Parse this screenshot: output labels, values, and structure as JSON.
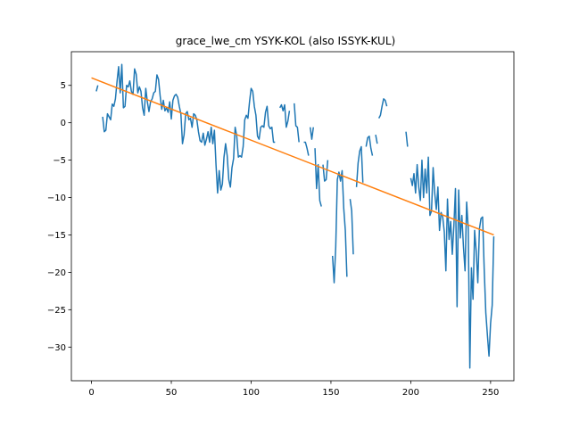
{
  "chart_data": {
    "type": "line",
    "title": "grace_lwe_cm YSYK-KOL (also ISSYK-KUL)",
    "xlabel": "",
    "ylabel": "",
    "xlim": [
      -12.6,
      264.6
    ],
    "ylim": [
      -34.5,
      9.5
    ],
    "xticks": [
      0,
      50,
      100,
      150,
      200,
      250
    ],
    "yticks": [
      -30,
      -25,
      -20,
      -15,
      -10,
      -5,
      0,
      5
    ],
    "grid": false,
    "series": [
      {
        "color": "#1f77b4",
        "segments": [
          [
            [
              3,
              4.2
            ],
            [
              4,
              5.0
            ]
          ],
          [
            [
              7,
              0.8
            ],
            [
              8,
              -1.2
            ],
            [
              9,
              -1.0
            ],
            [
              10,
              1.2
            ],
            [
              11,
              0.8
            ],
            [
              12,
              0.4
            ],
            [
              13,
              2.5
            ],
            [
              14,
              2.2
            ],
            [
              15,
              3.2
            ],
            [
              16,
              5.5
            ],
            [
              17,
              7.5
            ],
            [
              18,
              4.0
            ],
            [
              19,
              7.8
            ],
            [
              20,
              2.0
            ],
            [
              21,
              2.2
            ],
            [
              22,
              5.0
            ],
            [
              23,
              4.8
            ],
            [
              24,
              5.6
            ],
            [
              25,
              4.2
            ],
            [
              26,
              3.8
            ],
            [
              27,
              7.2
            ],
            [
              28,
              6.5
            ],
            [
              29,
              4.0
            ],
            [
              30,
              4.8
            ],
            [
              31,
              4.2
            ],
            [
              32,
              2.0
            ],
            [
              33,
              1.0
            ],
            [
              34,
              4.6
            ],
            [
              35,
              2.8
            ],
            [
              36,
              1.5
            ],
            [
              37,
              2.8
            ],
            [
              38,
              3.2
            ],
            [
              39,
              4.0
            ],
            [
              40,
              4.2
            ],
            [
              41,
              6.4
            ],
            [
              42,
              5.8
            ],
            [
              43,
              3.6
            ],
            [
              44,
              1.8
            ],
            [
              45,
              3.0
            ],
            [
              46,
              1.6
            ],
            [
              47,
              2.0
            ],
            [
              48,
              1.4
            ],
            [
              49,
              2.8
            ],
            [
              50,
              0.5
            ],
            [
              51,
              3.0
            ],
            [
              52,
              3.6
            ],
            [
              53,
              3.8
            ],
            [
              54,
              3.4
            ],
            [
              55,
              2.2
            ],
            [
              56,
              1.2
            ],
            [
              57,
              -2.8
            ],
            [
              58,
              -1.6
            ],
            [
              59,
              1.2
            ],
            [
              60,
              1.5
            ],
            [
              61,
              0.4
            ],
            [
              62,
              0.6
            ],
            [
              63,
              -0.6
            ],
            [
              64,
              1.2
            ],
            [
              65,
              1.0
            ],
            [
              66,
              0.4
            ],
            [
              67,
              -1.2
            ],
            [
              68,
              -2.4
            ],
            [
              69,
              -2.6
            ],
            [
              70,
              -1.4
            ],
            [
              71,
              -3.0
            ],
            [
              72,
              -2.2
            ],
            [
              73,
              -1.2
            ],
            [
              74,
              -2.6
            ],
            [
              75,
              -0.6
            ],
            [
              76,
              -2.8
            ],
            [
              77,
              -1.0
            ],
            [
              78,
              -5.6
            ],
            [
              79,
              -9.4
            ],
            [
              80,
              -6.4
            ],
            [
              81,
              -9.0
            ],
            [
              82,
              -8.2
            ],
            [
              83,
              -4.6
            ],
            [
              84,
              -2.8
            ],
            [
              85,
              -4.4
            ],
            [
              86,
              -7.6
            ],
            [
              87,
              -8.6
            ],
            [
              88,
              -6.0
            ],
            [
              89,
              -4.8
            ],
            [
              90,
              -0.6
            ],
            [
              91,
              -1.8
            ],
            [
              92,
              -4.6
            ],
            [
              93,
              -4.4
            ],
            [
              94,
              -4.6
            ],
            [
              95,
              -3.2
            ],
            [
              96,
              0.4
            ],
            [
              97,
              1.0
            ],
            [
              98,
              0.6
            ],
            [
              99,
              2.8
            ],
            [
              100,
              4.6
            ],
            [
              101,
              4.2
            ],
            [
              102,
              2.2
            ],
            [
              103,
              1.0
            ],
            [
              104,
              -1.8
            ],
            [
              105,
              -2.2
            ],
            [
              106,
              -0.6
            ],
            [
              107,
              -0.4
            ],
            [
              108,
              -0.6
            ],
            [
              109,
              1.4
            ],
            [
              110,
              2.2
            ],
            [
              111,
              -0.4
            ],
            [
              112,
              -0.8
            ],
            [
              113,
              -0.6
            ],
            [
              114,
              -2.6
            ],
            [
              115,
              -2.6
            ]
          ],
          [
            [
              118,
              2.0
            ],
            [
              119,
              2.4
            ],
            [
              120,
              1.6
            ],
            [
              121,
              2.4
            ],
            [
              122,
              -0.6
            ],
            [
              123,
              0.2
            ],
            [
              124,
              1.6
            ]
          ],
          [
            [
              127,
              2.6
            ],
            [
              128,
              -0.4
            ],
            [
              129,
              -0.6
            ],
            [
              130,
              -2.6
            ]
          ],
          [
            [
              133,
              -2.6
            ],
            [
              134,
              -2.6
            ],
            [
              135,
              -3.4
            ],
            [
              136,
              -4.4
            ]
          ],
          [
            [
              137,
              -0.6
            ],
            [
              138,
              -2.2
            ],
            [
              139,
              -0.6
            ]
          ],
          [
            [
              140,
              -3.4
            ],
            [
              141,
              -8.8
            ],
            [
              142,
              -5.6
            ],
            [
              143,
              -10.4
            ],
            [
              144,
              -11.2
            ]
          ],
          [
            [
              145,
              -5.6
            ],
            [
              146,
              -7.8
            ],
            [
              147,
              -7.6
            ],
            [
              148,
              -5.0
            ]
          ],
          [
            [
              151,
              -17.8
            ],
            [
              152,
              -21.4
            ],
            [
              153,
              -16.6
            ],
            [
              154,
              -7.6
            ],
            [
              155,
              -6.6
            ],
            [
              156,
              -7.8
            ],
            [
              157,
              -6.4
            ],
            [
              158,
              -11.4
            ],
            [
              159,
              -14.4
            ],
            [
              160,
              -20.6
            ]
          ],
          [
            [
              162,
              -10.2
            ],
            [
              163,
              -11.8
            ],
            [
              164,
              -17.6
            ]
          ],
          [
            [
              166,
              -8.6
            ],
            [
              167,
              -5.4
            ],
            [
              168,
              -3.8
            ],
            [
              169,
              -3.2
            ],
            [
              170,
              -8.0
            ]
          ],
          [
            [
              172,
              -3.2
            ],
            [
              173,
              -2.0
            ],
            [
              174,
              -1.8
            ],
            [
              175,
              -3.4
            ],
            [
              176,
              -4.4
            ]
          ],
          [
            [
              178,
              -1.6
            ],
            [
              179,
              -2.8
            ]
          ],
          [
            [
              180,
              0.6
            ],
            [
              181,
              1.0
            ],
            [
              182,
              2.2
            ],
            [
              183,
              3.2
            ],
            [
              184,
              3.0
            ],
            [
              185,
              2.2
            ]
          ],
          [
            [
              197,
              -1.2
            ],
            [
              198,
              -3.2
            ]
          ],
          [
            [
              200,
              -7.4
            ],
            [
              201,
              -8.4
            ],
            [
              202,
              -6.8
            ],
            [
              203,
              -9.4
            ],
            [
              204,
              -5.6
            ],
            [
              205,
              -8.6
            ],
            [
              206,
              -10.4
            ],
            [
              207,
              -5.0
            ],
            [
              208,
              -10.0
            ],
            [
              209,
              -6.2
            ],
            [
              210,
              -9.4
            ],
            [
              211,
              -4.6
            ],
            [
              212,
              -12.4
            ],
            [
              213,
              -11.8
            ],
            [
              214,
              -6.0
            ],
            [
              215,
              -9.4
            ],
            [
              216,
              -11.6
            ],
            [
              217,
              -8.6
            ],
            [
              218,
              -14.4
            ],
            [
              219,
              -12.0
            ],
            [
              220,
              -12.6
            ],
            [
              221,
              -14.6
            ],
            [
              222,
              -19.8
            ],
            [
              223,
              -10.2
            ],
            [
              224,
              -15.6
            ],
            [
              225,
              -13.2
            ],
            [
              226,
              -17.6
            ],
            [
              227,
              -13.8
            ],
            [
              228,
              -8.8
            ],
            [
              229,
              -24.6
            ],
            [
              230,
              -9.0
            ],
            [
              231,
              -15.4
            ],
            [
              232,
              -12.4
            ],
            [
              233,
              -16.6
            ],
            [
              234,
              -19.8
            ],
            [
              235,
              -10.6
            ],
            [
              236,
              -14.2
            ],
            [
              237,
              -32.8
            ],
            [
              238,
              -19.4
            ],
            [
              239,
              -23.6
            ],
            [
              240,
              -14.4
            ],
            [
              241,
              -17.2
            ],
            [
              242,
              -21.4
            ],
            [
              243,
              -14.2
            ],
            [
              244,
              -12.8
            ],
            [
              245,
              -12.6
            ],
            [
              246,
              -19.6
            ],
            [
              247,
              -25.4
            ],
            [
              248,
              -28.4
            ],
            [
              249,
              -31.2
            ],
            [
              250,
              -26.8
            ],
            [
              251,
              -24.4
            ],
            [
              252,
              -15.2
            ]
          ]
        ]
      },
      {
        "color": "#ff7f0e",
        "segments": [
          [
            [
              0,
              6.0
            ],
            [
              252,
              -15.0
            ]
          ]
        ]
      }
    ]
  }
}
